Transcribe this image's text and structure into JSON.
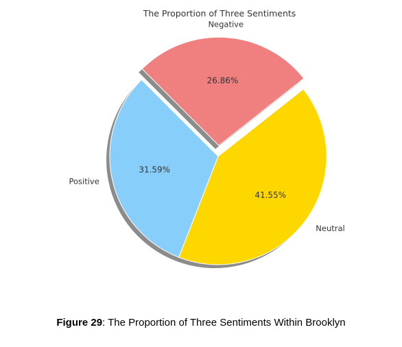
{
  "chart_data": {
    "type": "pie",
    "title": "The Proportion of Three Sentiments",
    "categories": [
      "Positive",
      "Neutral",
      "Negative"
    ],
    "values": [
      31.59,
      41.55,
      26.86
    ],
    "value_labels": [
      "31.59%",
      "41.55%",
      "26.86%"
    ],
    "colors": [
      "#87CEFA",
      "#FFD700",
      "#F08080"
    ],
    "explode": [
      0,
      0,
      0.1
    ],
    "shadow": true,
    "start_angle_deg": 135
  },
  "caption": {
    "label": "Figure 29",
    "text": ": The Proportion of Three Sentiments Within Brooklyn"
  }
}
